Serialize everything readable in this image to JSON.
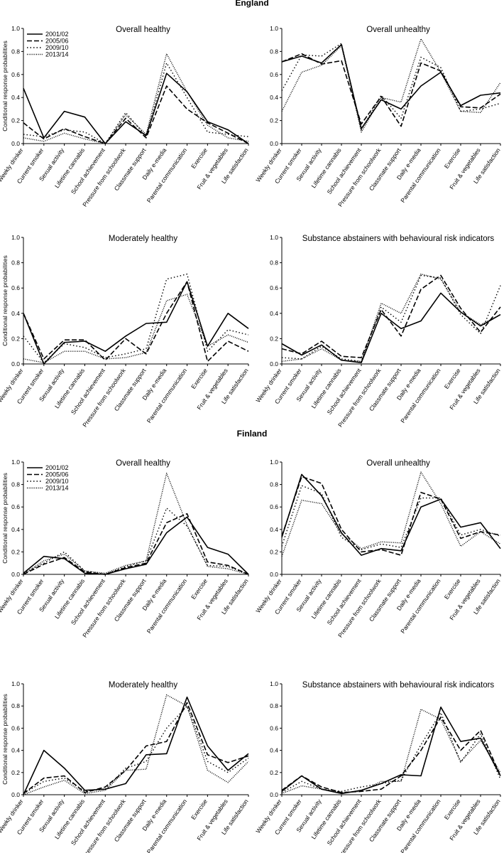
{
  "sections": [
    {
      "title": "England",
      "chart_data": [
        {
          "type": "line",
          "title": "Overall healthy",
          "ylabel": "Conditional response probabilities",
          "ylim": [
            0,
            1
          ],
          "legend": "top-left",
          "categories": [
            "Weekly drinker",
            "Current smoker",
            "Sexual activity",
            "Lifetime cannabis",
            "School achievement",
            "Pressure from schoolwork",
            "Classmate support",
            "Daily e-media",
            "Parental communication",
            "Exercise",
            "Fruit & vegetables",
            "Life satisfaction"
          ],
          "series": [
            {
              "name": "2001/02",
              "values": [
                0.48,
                0.05,
                0.28,
                0.23,
                0.0,
                0.19,
                0.07,
                0.61,
                0.45,
                0.19,
                0.12,
                0.0
              ]
            },
            {
              "name": "2005/06",
              "values": [
                0.18,
                0.04,
                0.13,
                0.06,
                0.0,
                0.22,
                0.05,
                0.5,
                0.3,
                0.18,
                0.09,
                0.0
              ]
            },
            {
              "name": "2009/10",
              "values": [
                0.08,
                0.06,
                0.12,
                0.1,
                0.0,
                0.27,
                0.06,
                0.7,
                0.4,
                0.1,
                0.08,
                0.06
              ]
            },
            {
              "name": "2013/14",
              "values": [
                0.05,
                0.02,
                0.09,
                0.04,
                0.0,
                0.25,
                0.08,
                0.78,
                0.45,
                0.16,
                0.05,
                0.02
              ]
            }
          ]
        },
        {
          "type": "line",
          "title": "Overall unhealthy",
          "ylabel": "",
          "ylim": [
            0,
            1
          ],
          "categories": [
            "Weekly drinker",
            "Current smoker",
            "Sexual activity",
            "Lifetime cannabis",
            "School achievement",
            "Pressure from schoolwork",
            "Classmate support",
            "Daily e-media",
            "Parental communication",
            "Exercise",
            "Fruit & vegetables",
            "Life satisfaction"
          ],
          "series": [
            {
              "name": "2001/02",
              "values": [
                0.71,
                0.76,
                0.7,
                0.86,
                0.13,
                0.38,
                0.3,
                0.5,
                0.62,
                0.33,
                0.42,
                0.44
              ]
            },
            {
              "name": "2005/06",
              "values": [
                0.71,
                0.78,
                0.69,
                0.72,
                0.17,
                0.41,
                0.15,
                0.7,
                0.63,
                0.32,
                0.31,
                0.43
              ]
            },
            {
              "name": "2009/10",
              "values": [
                0.46,
                0.77,
                0.76,
                0.87,
                0.12,
                0.42,
                0.22,
                0.75,
                0.66,
                0.28,
                0.3,
                0.35
              ]
            },
            {
              "name": "2013/14",
              "values": [
                0.28,
                0.62,
                0.68,
                0.85,
                0.1,
                0.4,
                0.36,
                0.91,
                0.62,
                0.28,
                0.27,
                0.53
              ]
            }
          ]
        },
        {
          "type": "line",
          "title": "Moderately healthy",
          "ylabel": "Conditional response probabilities",
          "ylim": [
            0,
            1
          ],
          "categories": [
            "Weekly drinker",
            "Current smoker",
            "Sexual activity",
            "Lifetime cannabis",
            "School achievement",
            "Pressure from schoolwork",
            "Classmate support",
            "Daily e-media",
            "Parental communication",
            "Exercise",
            "Fruit & vegetables",
            "Life satisfaction"
          ],
          "series": [
            {
              "name": "2001/02",
              "values": [
                0.4,
                0.0,
                0.17,
                0.18,
                0.1,
                0.22,
                0.32,
                0.33,
                0.65,
                0.14,
                0.4,
                0.28
              ]
            },
            {
              "name": "2005/06",
              "values": [
                0.4,
                0.04,
                0.19,
                0.19,
                0.03,
                0.2,
                0.08,
                0.4,
                0.65,
                0.02,
                0.18,
                0.1
              ]
            },
            {
              "name": "2009/10",
              "values": [
                0.22,
                0.01,
                0.16,
                0.13,
                0.05,
                0.08,
                0.12,
                0.67,
                0.71,
                0.1,
                0.27,
                0.23
              ]
            },
            {
              "name": "2013/14",
              "values": [
                0.04,
                0.01,
                0.1,
                0.1,
                0.04,
                0.05,
                0.09,
                0.5,
                0.55,
                0.14,
                0.23,
                0.17
              ]
            }
          ]
        },
        {
          "type": "line",
          "title": "Substance abstainers with behavioural risk indicators",
          "ylabel": "",
          "ylim": [
            0,
            1
          ],
          "categories": [
            "Weekly drinker",
            "Current smoker",
            "Sexual activity",
            "Lifetime cannabis",
            "School achievement",
            "Pressure from schoolwork",
            "Classmate support",
            "Daily e-media",
            "Parental communication",
            "Exercise",
            "Fruit & vegetables",
            "Life satisfaction"
          ],
          "series": [
            {
              "name": "2001/02",
              "values": [
                0.16,
                0.07,
                0.15,
                0.03,
                0.01,
                0.4,
                0.28,
                0.34,
                0.56,
                0.41,
                0.3,
                0.39
              ]
            },
            {
              "name": "2005/06",
              "values": [
                0.12,
                0.08,
                0.18,
                0.06,
                0.05,
                0.43,
                0.22,
                0.59,
                0.7,
                0.44,
                0.25,
                0.45
              ]
            },
            {
              "name": "2009/10",
              "values": [
                0.05,
                0.04,
                0.14,
                0.04,
                0.02,
                0.45,
                0.33,
                0.7,
                0.68,
                0.39,
                0.24,
                0.62
              ]
            },
            {
              "name": "2013/14",
              "values": [
                0.02,
                0.04,
                0.12,
                0.03,
                0.02,
                0.48,
                0.4,
                0.71,
                0.67,
                0.41,
                0.31,
                0.39
              ]
            }
          ]
        }
      ]
    },
    {
      "title": "Finland",
      "chart_data": [
        {
          "type": "line",
          "title": "Overall healthy",
          "ylabel": "Conditional response probabilities",
          "ylim": [
            0,
            1
          ],
          "legend": "top-left",
          "categories": [
            "Weekly drinker",
            "Current smoker",
            "Sexual activity",
            "Lifetime cannabis",
            "School achievement",
            "Pressure from schoolwork",
            "Classmate support",
            "Daily e-media",
            "Parental communication",
            "Exercise",
            "Fruit & vegetables",
            "Life satisfaction"
          ],
          "series": [
            {
              "name": "2001/02",
              "values": [
                0.01,
                0.16,
                0.14,
                0.01,
                0.0,
                0.05,
                0.09,
                0.37,
                0.51,
                0.24,
                0.18,
                0.0
              ]
            },
            {
              "name": "2005/06",
              "values": [
                0.0,
                0.09,
                0.15,
                0.02,
                0.0,
                0.06,
                0.1,
                0.46,
                0.54,
                0.11,
                0.08,
                0.0
              ]
            },
            {
              "name": "2009/10",
              "values": [
                0.01,
                0.1,
                0.2,
                0.03,
                0.0,
                0.07,
                0.12,
                0.59,
                0.43,
                0.08,
                0.07,
                0.0
              ]
            },
            {
              "name": "2013/14",
              "values": [
                0.0,
                0.12,
                0.18,
                0.03,
                0.01,
                0.08,
                0.12,
                0.9,
                0.44,
                0.07,
                0.05,
                0.0
              ]
            }
          ]
        },
        {
          "type": "line",
          "title": "Overall unhealthy",
          "ylabel": "",
          "ylim": [
            0,
            1
          ],
          "categories": [
            "Weekly drinker",
            "Current smoker",
            "Sexual activity",
            "Lifetime cannabis",
            "School achievement",
            "Pressure from schoolwork",
            "Classmate support",
            "Daily e-media",
            "Parental communication",
            "Exercise",
            "Fruit & vegetables",
            "Life satisfaction"
          ],
          "series": [
            {
              "name": "2001/02",
              "values": [
                0.33,
                0.89,
                0.7,
                0.37,
                0.17,
                0.23,
                0.21,
                0.6,
                0.67,
                0.42,
                0.46,
                0.23
              ]
            },
            {
              "name": "2005/06",
              "values": [
                0.34,
                0.87,
                0.81,
                0.4,
                0.2,
                0.22,
                0.17,
                0.73,
                0.67,
                0.32,
                0.38,
                0.35
              ]
            },
            {
              "name": "2009/10",
              "values": [
                0.25,
                0.79,
                0.72,
                0.33,
                0.22,
                0.27,
                0.24,
                0.68,
                0.68,
                0.35,
                0.4,
                0.34
              ]
            },
            {
              "name": "2013/14",
              "values": [
                0.16,
                0.66,
                0.63,
                0.36,
                0.23,
                0.29,
                0.28,
                0.91,
                0.63,
                0.25,
                0.38,
                0.27
              ]
            }
          ]
        },
        {
          "type": "line",
          "title": "Moderately healthy",
          "ylabel": "Conditional response probabilities",
          "ylim": [
            0,
            1
          ],
          "categories": [
            "Weekly drinker",
            "Current smoker",
            "Sexual activity",
            "Lifetime cannabis",
            "School achievement",
            "Pressure from schoolwork",
            "Classmate support",
            "Daily e-media",
            "Parental communication",
            "Exercise",
            "Fruit & vegetables",
            "Life satisfaction"
          ],
          "series": [
            {
              "name": "2001/02",
              "values": [
                0.0,
                0.4,
                0.24,
                0.04,
                0.05,
                0.1,
                0.36,
                0.37,
                0.88,
                0.44,
                0.22,
                0.37
              ]
            },
            {
              "name": "2005/06",
              "values": [
                0.01,
                0.15,
                0.17,
                0.02,
                0.07,
                0.22,
                0.44,
                0.48,
                0.83,
                0.36,
                0.29,
                0.35
              ]
            },
            {
              "name": "2009/10",
              "values": [
                0.01,
                0.12,
                0.15,
                0.03,
                0.05,
                0.24,
                0.3,
                0.6,
                0.8,
                0.3,
                0.2,
                0.33
              ]
            },
            {
              "name": "2013/14",
              "values": [
                0.0,
                0.07,
                0.13,
                0.01,
                0.04,
                0.22,
                0.23,
                0.9,
                0.8,
                0.22,
                0.11,
                0.3
              ]
            }
          ]
        },
        {
          "type": "line",
          "title": "Substance abstainers with behavioural risk indicators",
          "ylabel": "",
          "ylim": [
            0,
            1
          ],
          "categories": [
            "Weekly drinker",
            "Current smoker",
            "Sexual activity",
            "Lifetime cannabis",
            "School achievement",
            "Pressure from schoolwork",
            "Classmate support",
            "Daily e-media",
            "Parental communication",
            "Exercise",
            "Fruit & vegetables",
            "Life satisfaction"
          ],
          "series": [
            {
              "name": "2001/02",
              "values": [
                0.03,
                0.17,
                0.05,
                0.01,
                0.04,
                0.1,
                0.18,
                0.17,
                0.79,
                0.48,
                0.51,
                0.17
              ]
            },
            {
              "name": "2005/06",
              "values": [
                0.04,
                0.17,
                0.07,
                0.02,
                0.03,
                0.05,
                0.17,
                0.4,
                0.7,
                0.4,
                0.58,
                0.17
              ]
            },
            {
              "name": "2009/10",
              "values": [
                0.02,
                0.12,
                0.05,
                0.03,
                0.07,
                0.1,
                0.13,
                0.45,
                0.74,
                0.29,
                0.55,
                0.14
              ]
            },
            {
              "name": "2013/14",
              "values": [
                0.01,
                0.08,
                0.05,
                0.02,
                0.03,
                0.12,
                0.12,
                0.77,
                0.68,
                0.3,
                0.49,
                0.2
              ]
            }
          ]
        }
      ]
    }
  ]
}
